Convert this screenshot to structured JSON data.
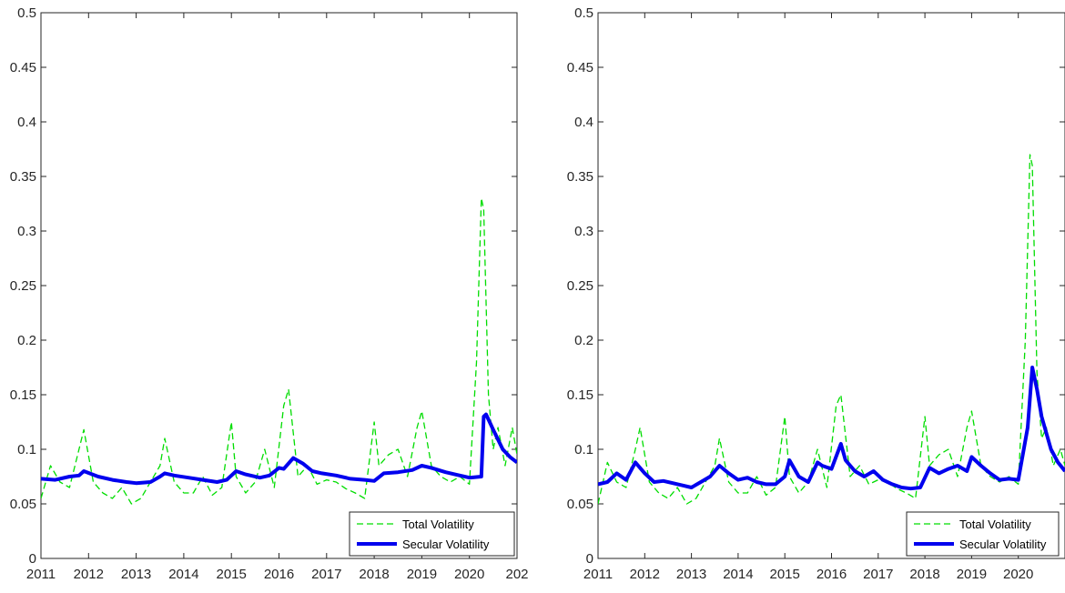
{
  "chart_data": [
    {
      "type": "line",
      "title": "",
      "xlabel": "",
      "ylabel": "",
      "ylim": [
        0,
        0.5
      ],
      "xlim": [
        2011,
        2021
      ],
      "x_ticks": [
        "2011",
        "2012",
        "2013",
        "2014",
        "2015",
        "2016",
        "2017",
        "2018",
        "2019",
        "2020",
        "202"
      ],
      "y_ticks": [
        "0",
        "0.05",
        "0.1",
        "0.15",
        "0.2",
        "0.25",
        "0.3",
        "0.35",
        "0.4",
        "0.45",
        "0.5"
      ],
      "grid": false,
      "legend_position": "bottom-right",
      "series": [
        {
          "name": "Total Volatility",
          "color": "#00dd00",
          "style": "dashed",
          "x": [
            2011.0,
            2011.2,
            2011.4,
            2011.6,
            2011.8,
            2011.9,
            2012.1,
            2012.3,
            2012.5,
            2012.7,
            2012.9,
            2013.1,
            2013.3,
            2013.5,
            2013.6,
            2013.8,
            2014.0,
            2014.2,
            2014.4,
            2014.6,
            2014.8,
            2015.0,
            2015.1,
            2015.3,
            2015.5,
            2015.7,
            2015.9,
            2016.1,
            2016.2,
            2016.4,
            2016.6,
            2016.8,
            2017.0,
            2017.2,
            2017.4,
            2017.6,
            2017.8,
            2018.0,
            2018.1,
            2018.3,
            2018.5,
            2018.7,
            2018.9,
            2019.0,
            2019.2,
            2019.4,
            2019.6,
            2019.8,
            2020.0,
            2020.15,
            2020.25,
            2020.3,
            2020.4,
            2020.5,
            2020.6,
            2020.75,
            2020.9,
            2021.0
          ],
          "y": [
            0.055,
            0.085,
            0.07,
            0.065,
            0.1,
            0.118,
            0.07,
            0.06,
            0.055,
            0.065,
            0.05,
            0.055,
            0.07,
            0.085,
            0.11,
            0.07,
            0.06,
            0.06,
            0.075,
            0.058,
            0.065,
            0.125,
            0.075,
            0.06,
            0.07,
            0.1,
            0.065,
            0.14,
            0.155,
            0.075,
            0.085,
            0.068,
            0.072,
            0.07,
            0.064,
            0.06,
            0.055,
            0.125,
            0.085,
            0.095,
            0.1,
            0.075,
            0.12,
            0.135,
            0.085,
            0.075,
            0.07,
            0.075,
            0.068,
            0.18,
            0.33,
            0.32,
            0.15,
            0.1,
            0.12,
            0.085,
            0.12,
            0.095
          ]
        },
        {
          "name": "Secular Volatility",
          "color": "#0000ee",
          "style": "solid",
          "x": [
            2011.0,
            2011.3,
            2011.6,
            2011.8,
            2011.9,
            2012.2,
            2012.5,
            2012.8,
            2013.0,
            2013.3,
            2013.5,
            2013.6,
            2013.8,
            2014.1,
            2014.4,
            2014.7,
            2014.9,
            2015.1,
            2015.3,
            2015.6,
            2015.8,
            2016.0,
            2016.1,
            2016.3,
            2016.5,
            2016.7,
            2016.9,
            2017.2,
            2017.5,
            2017.8,
            2018.0,
            2018.2,
            2018.5,
            2018.8,
            2019.0,
            2019.2,
            2019.5,
            2019.8,
            2020.0,
            2020.25,
            2020.3,
            2020.35,
            2020.5,
            2020.7,
            2020.85,
            2021.0
          ],
          "y": [
            0.073,
            0.072,
            0.075,
            0.076,
            0.08,
            0.075,
            0.072,
            0.07,
            0.069,
            0.07,
            0.075,
            0.078,
            0.076,
            0.074,
            0.072,
            0.07,
            0.072,
            0.08,
            0.077,
            0.074,
            0.076,
            0.083,
            0.082,
            0.092,
            0.087,
            0.08,
            0.078,
            0.076,
            0.073,
            0.072,
            0.071,
            0.078,
            0.079,
            0.081,
            0.085,
            0.083,
            0.079,
            0.076,
            0.074,
            0.075,
            0.13,
            0.132,
            0.118,
            0.1,
            0.093,
            0.088
          ]
        }
      ]
    },
    {
      "type": "line",
      "title": "",
      "xlabel": "",
      "ylabel": "",
      "ylim": [
        0,
        0.5
      ],
      "xlim": [
        2011,
        2021
      ],
      "x_ticks": [
        "2011",
        "2012",
        "2013",
        "2014",
        "2015",
        "2016",
        "2017",
        "2018",
        "2019",
        "2020"
      ],
      "y_ticks": [
        "0",
        "0.05",
        "0.1",
        "0.15",
        "0.2",
        "0.25",
        "0.3",
        "0.35",
        "0.4",
        "0.45",
        "0.5"
      ],
      "grid": false,
      "legend_position": "bottom-right",
      "series": [
        {
          "name": "Total Volatility",
          "color": "#00dd00",
          "style": "dashed",
          "x": [
            2011.0,
            2011.2,
            2011.4,
            2011.6,
            2011.8,
            2011.9,
            2012.1,
            2012.3,
            2012.5,
            2012.7,
            2012.9,
            2013.1,
            2013.3,
            2013.5,
            2013.6,
            2013.8,
            2014.0,
            2014.2,
            2014.4,
            2014.6,
            2014.8,
            2015.0,
            2015.1,
            2015.3,
            2015.5,
            2015.7,
            2015.9,
            2016.1,
            2016.2,
            2016.4,
            2016.6,
            2016.8,
            2017.0,
            2017.2,
            2017.4,
            2017.6,
            2017.8,
            2018.0,
            2018.1,
            2018.3,
            2018.5,
            2018.7,
            2018.9,
            2019.0,
            2019.2,
            2019.4,
            2019.6,
            2019.8,
            2020.0,
            2020.15,
            2020.25,
            2020.3,
            2020.4,
            2020.5,
            2020.6,
            2020.75,
            2020.9,
            2021.0
          ],
          "y": [
            0.05,
            0.088,
            0.07,
            0.065,
            0.1,
            0.12,
            0.07,
            0.06,
            0.055,
            0.065,
            0.05,
            0.055,
            0.07,
            0.085,
            0.11,
            0.07,
            0.06,
            0.06,
            0.075,
            0.058,
            0.065,
            0.13,
            0.075,
            0.06,
            0.07,
            0.1,
            0.065,
            0.14,
            0.15,
            0.075,
            0.085,
            0.068,
            0.072,
            0.07,
            0.064,
            0.06,
            0.055,
            0.13,
            0.085,
            0.095,
            0.1,
            0.075,
            0.12,
            0.135,
            0.085,
            0.075,
            0.07,
            0.075,
            0.068,
            0.2,
            0.37,
            0.36,
            0.17,
            0.11,
            0.12,
            0.085,
            0.1,
            0.085
          ]
        },
        {
          "name": "Secular Volatility",
          "color": "#0000ee",
          "style": "solid",
          "x": [
            2011.0,
            2011.2,
            2011.4,
            2011.6,
            2011.8,
            2012.0,
            2012.2,
            2012.4,
            2012.6,
            2012.8,
            2013.0,
            2013.2,
            2013.4,
            2013.6,
            2013.8,
            2014.0,
            2014.2,
            2014.4,
            2014.6,
            2014.8,
            2015.0,
            2015.1,
            2015.3,
            2015.5,
            2015.7,
            2015.8,
            2016.0,
            2016.2,
            2016.3,
            2016.5,
            2016.7,
            2016.9,
            2017.1,
            2017.3,
            2017.5,
            2017.7,
            2017.9,
            2018.1,
            2018.3,
            2018.5,
            2018.7,
            2018.9,
            2019.0,
            2019.2,
            2019.4,
            2019.6,
            2019.8,
            2020.0,
            2020.2,
            2020.3,
            2020.4,
            2020.5,
            2020.7,
            2020.85,
            2021.0
          ],
          "y": [
            0.068,
            0.07,
            0.078,
            0.072,
            0.088,
            0.078,
            0.07,
            0.071,
            0.069,
            0.067,
            0.065,
            0.07,
            0.075,
            0.085,
            0.078,
            0.072,
            0.074,
            0.07,
            0.068,
            0.068,
            0.075,
            0.09,
            0.075,
            0.07,
            0.088,
            0.085,
            0.082,
            0.105,
            0.09,
            0.08,
            0.075,
            0.08,
            0.072,
            0.068,
            0.065,
            0.064,
            0.065,
            0.083,
            0.078,
            0.082,
            0.085,
            0.08,
            0.093,
            0.085,
            0.078,
            0.072,
            0.073,
            0.072,
            0.12,
            0.175,
            0.155,
            0.13,
            0.1,
            0.088,
            0.08
          ]
        }
      ]
    }
  ]
}
